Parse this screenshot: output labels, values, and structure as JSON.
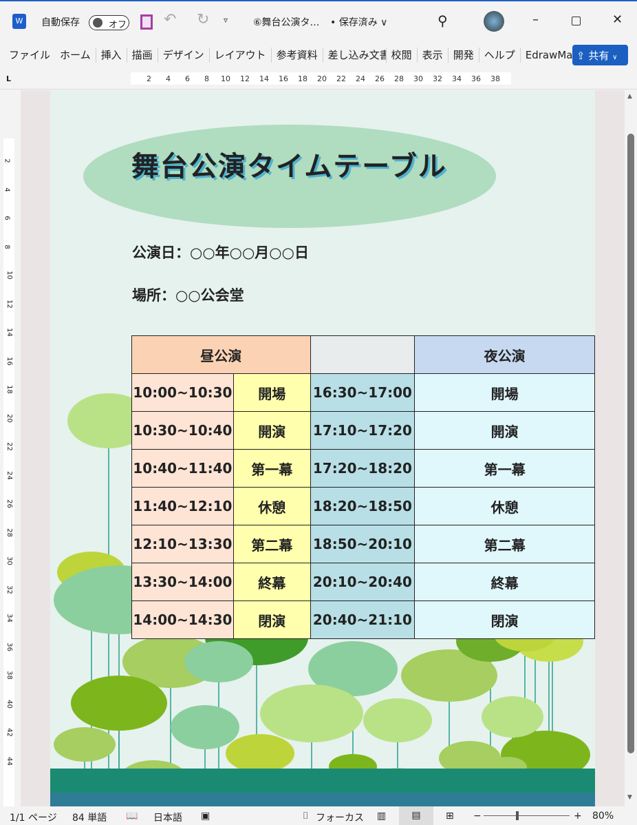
{
  "titlebar": {
    "autosave_label": "自動保存",
    "toggle_state": "オフ",
    "doc_title": "⑥舞台公演タ…",
    "save_status": "• 保存済み ∨"
  },
  "ribbon": {
    "tabs": [
      "ファイル",
      "ホーム",
      "挿入",
      "描画",
      "デザイン",
      "レイアウト",
      "参考資料",
      "差し込み文書",
      "校閲",
      "表示",
      "開発",
      "ヘルプ",
      "EdrawMax"
    ],
    "share": "共有"
  },
  "ruler": [
    "2",
    "4",
    "6",
    "8",
    "10",
    "12",
    "14",
    "16",
    "18",
    "20",
    "22",
    "24",
    "26",
    "28",
    "30",
    "32",
    "34",
    "36",
    "38"
  ],
  "vruler": [
    "2",
    "4",
    "6",
    "8",
    "10",
    "12",
    "14",
    "16",
    "18",
    "20",
    "22",
    "24",
    "26",
    "28",
    "30",
    "32",
    "34",
    "36",
    "38",
    "40",
    "42",
    "44"
  ],
  "document": {
    "title": "舞台公演タイムテーブル",
    "date": "公演日：○○年○○月○○日",
    "place": "場所：○○公会堂",
    "day_header": "昼公演",
    "night_header": "夜公演",
    "day": [
      [
        "10:00~10:30",
        "開場"
      ],
      [
        "10:30~10:40",
        "開演"
      ],
      [
        "10:40~11:40",
        "第一幕"
      ],
      [
        "11:40~12:10",
        "休憩"
      ],
      [
        "12:10~13:30",
        "第二幕"
      ],
      [
        "13:30~14:00",
        "終幕"
      ],
      [
        "14:00~14:30",
        "閉演"
      ]
    ],
    "night": [
      [
        "16:30~17:00",
        "開場"
      ],
      [
        "17:10~17:20",
        "開演"
      ],
      [
        "17:20~18:20",
        "第一幕"
      ],
      [
        "18:20~18:50",
        "休憩"
      ],
      [
        "18:50~20:10",
        "第二幕"
      ],
      [
        "20:10~20:40",
        "終幕"
      ],
      [
        "20:40~21:10",
        "閉演"
      ]
    ]
  },
  "status": {
    "page": "1/1 ページ",
    "words": "84 単語",
    "language": "日本語",
    "focus": "フォーカス",
    "zoom_minus": "−",
    "zoom_plus": "+",
    "zoom": "80%",
    "zoom_level_percent": 80
  },
  "colors": {
    "day_header": "#fbd3b4",
    "night_header": "#c6d9f0",
    "day_time": "#fde4d5",
    "day_event": "#ffffad",
    "night_time": "#b8dfe6",
    "night_event": "#e0f7fc",
    "accent": "#1b5fc1"
  }
}
